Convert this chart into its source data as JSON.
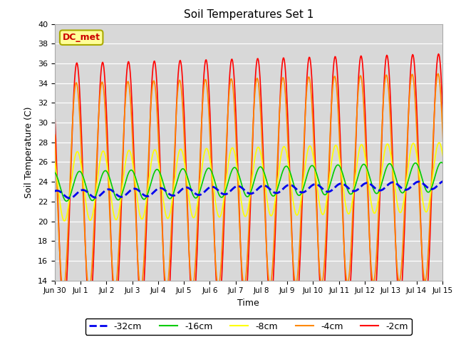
{
  "title": "Soil Temperatures Set 1",
  "xlabel": "Time",
  "ylabel": "Soil Temperature (C)",
  "ylim": [
    14,
    40
  ],
  "yticks": [
    14,
    16,
    18,
    20,
    22,
    24,
    26,
    28,
    30,
    32,
    34,
    36,
    38,
    40
  ],
  "background_color": "#d8d8d8",
  "annotation_text": "DC_met",
  "annotation_color": "#cc0000",
  "annotation_bg": "#ffff99",
  "annotation_border": "#aaaa00",
  "series_colors": {
    "-32cm": "#0000ee",
    "-16cm": "#00cc00",
    "-8cm": "#ffff00",
    "-4cm": "#ff8800",
    "-2cm": "#ff0000"
  },
  "xtick_labels": [
    "Jun 30",
    "Jul 1",
    "Jul 2",
    "Jul 3",
    "Jul 4",
    "Jul 5",
    "Jul 6",
    "Jul 7",
    "Jul 8",
    "Jul 9",
    "Jul 10",
    "Jul 11",
    "Jul 12",
    "Jul 13",
    "Jul 14",
    "Jul 15"
  ],
  "num_days": 16,
  "points_per_day": 48,
  "base_temp": 23.5,
  "trend": 0.065,
  "amp_32cm": 0.4,
  "amp_16cm": 1.5,
  "amp_8cm": 3.5,
  "amp_4cm": 10.5,
  "amp_2cm": 12.5,
  "legend_labels": [
    "-32cm",
    "-16cm",
    "-8cm",
    "-4cm",
    "-2cm"
  ],
  "legend_colors": [
    "#0000ee",
    "#00cc00",
    "#ffff00",
    "#ff8800",
    "#ff0000"
  ]
}
